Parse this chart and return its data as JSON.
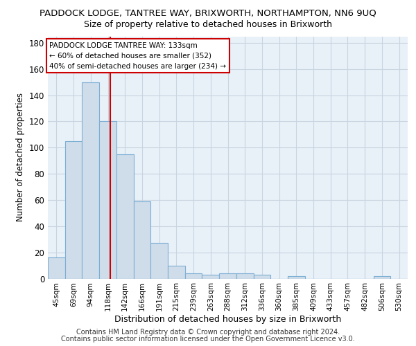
{
  "title": "PADDOCK LODGE, TANTREE WAY, BRIXWORTH, NORTHAMPTON, NN6 9UQ",
  "subtitle": "Size of property relative to detached houses in Brixworth",
  "xlabel": "Distribution of detached houses by size in Brixworth",
  "ylabel": "Number of detached properties",
  "categories": [
    "45sqm",
    "69sqm",
    "94sqm",
    "118sqm",
    "142sqm",
    "166sqm",
    "191sqm",
    "215sqm",
    "239sqm",
    "263sqm",
    "288sqm",
    "312sqm",
    "336sqm",
    "360sqm",
    "385sqm",
    "409sqm",
    "433sqm",
    "457sqm",
    "482sqm",
    "506sqm",
    "530sqm"
  ],
  "values": [
    16,
    105,
    150,
    120,
    95,
    59,
    27,
    10,
    4,
    3,
    4,
    4,
    3,
    0,
    2,
    0,
    0,
    0,
    0,
    2,
    0
  ],
  "bar_color": "#cfdcea",
  "bar_edge_color": "#7bafd4",
  "grid_color": "#c8d4e0",
  "vline_color": "#cc0000",
  "annotation_line1": "PADDOCK LODGE TANTREE WAY: 133sqm",
  "annotation_line2": "← 60% of detached houses are smaller (352)",
  "annotation_line3": "40% of semi-detached houses are larger (234) →",
  "ylim": [
    0,
    185
  ],
  "yticks": [
    0,
    20,
    40,
    60,
    80,
    100,
    120,
    140,
    160,
    180
  ],
  "title_fontsize": 9.5,
  "subtitle_fontsize": 9.0,
  "tick_fontsize": 7.5,
  "ylabel_fontsize": 8.5,
  "xlabel_fontsize": 9.0,
  "footer_line1": "Contains HM Land Registry data © Crown copyright and database right 2024.",
  "footer_line2": "Contains public sector information licensed under the Open Government Licence v3.0.",
  "background_color": "#e8f0f8"
}
